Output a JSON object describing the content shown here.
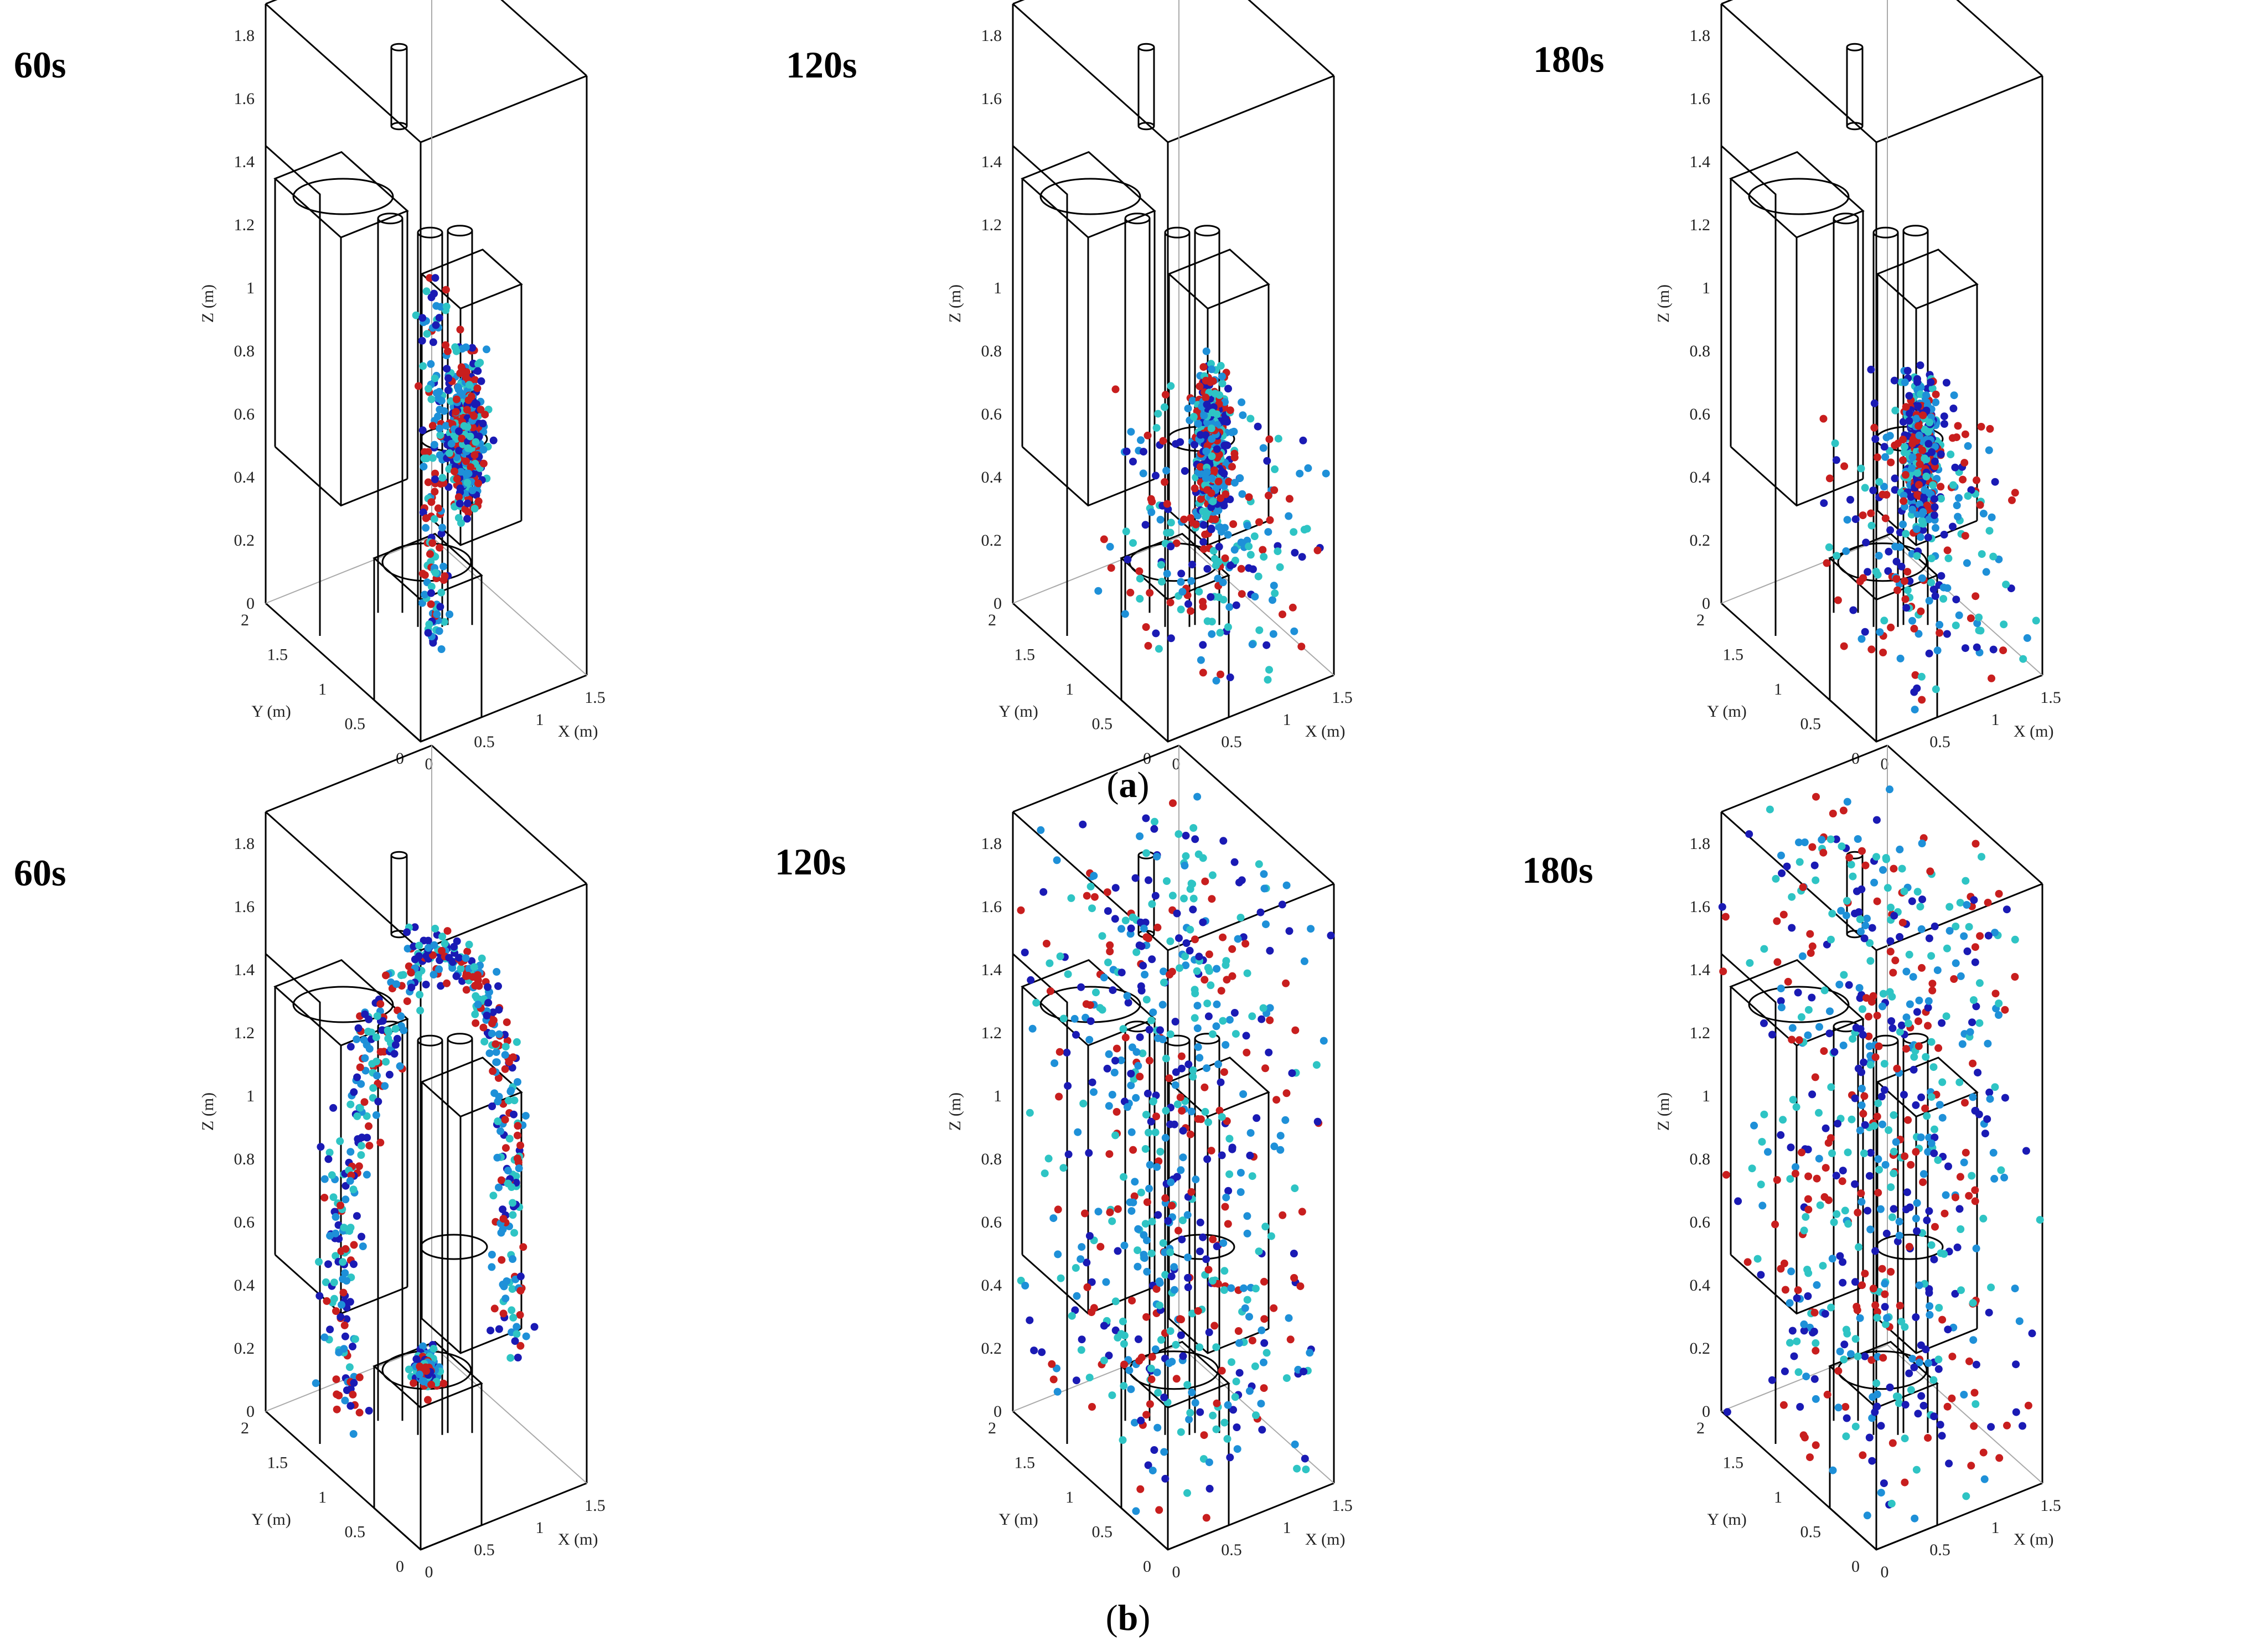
{
  "figure": {
    "rows": [
      {
        "letter": "a",
        "paren_open": "(",
        "paren_close": ")"
      },
      {
        "letter": "b",
        "paren_open": "(",
        "paren_close": ")"
      }
    ]
  },
  "chart_data": [
    {
      "type": "scatter",
      "row": "a",
      "time_label": "60s",
      "distribution": "cluster",
      "particle_count": 620,
      "axes": {
        "xlabel": "X (m)",
        "ylabel": "Y (m)",
        "zlabel": "Z (m)",
        "xticks": [
          "0",
          "0.5",
          "1",
          "1.5"
        ],
        "yticks": [
          "0",
          "0.5",
          "1",
          "1.5",
          "2"
        ],
        "zticks": [
          "0",
          "0.2",
          "0.4",
          "0.6",
          "0.8",
          "1",
          "1.2",
          "1.4",
          "1.6",
          "1.8"
        ],
        "xlim": [
          0,
          1.5
        ],
        "ylim": [
          0,
          2
        ],
        "zlim": [
          0,
          1.9
        ]
      },
      "colors": [
        "#1a1ab4",
        "#1e90d8",
        "#2ec4c4",
        "#c81e1e"
      ]
    },
    {
      "type": "scatter",
      "row": "a",
      "time_label": "120s",
      "distribution": "cluster-spread",
      "particle_count": 620,
      "axes": {
        "xlabel": "X (m)",
        "ylabel": "Y (m)",
        "zlabel": "Z (m)",
        "xticks": [
          "0",
          "0.5",
          "1",
          "1.5"
        ],
        "yticks": [
          "0",
          "0.5",
          "1",
          "1.5",
          "2"
        ],
        "zticks": [
          "0",
          "0.2",
          "0.4",
          "0.6",
          "0.8",
          "1",
          "1.2",
          "1.4",
          "1.6",
          "1.8"
        ],
        "xlim": [
          0,
          1.5
        ],
        "ylim": [
          0,
          2
        ],
        "zlim": [
          0,
          1.9
        ]
      },
      "colors": [
        "#1a1ab4",
        "#1e90d8",
        "#2ec4c4",
        "#c81e1e"
      ]
    },
    {
      "type": "scatter",
      "row": "a",
      "time_label": "180s",
      "distribution": "cluster-spread",
      "particle_count": 620,
      "axes": {
        "xlabel": "X (m)",
        "ylabel": "Y (m)",
        "zlabel": "Z (m)",
        "xticks": [
          "0",
          "0.5",
          "1",
          "1.5"
        ],
        "yticks": [
          "0",
          "0.5",
          "1",
          "1.5",
          "2"
        ],
        "zticks": [
          "0",
          "0.2",
          "0.4",
          "0.6",
          "0.8",
          "1",
          "1.2",
          "1.4",
          "1.6",
          "1.8"
        ],
        "xlim": [
          0,
          1.5
        ],
        "ylim": [
          0,
          2
        ],
        "zlim": [
          0,
          1.9
        ]
      },
      "colors": [
        "#1a1ab4",
        "#1e90d8",
        "#2ec4c4",
        "#c81e1e"
      ]
    },
    {
      "type": "scatter",
      "row": "b",
      "time_label": "60s",
      "distribution": "plume",
      "particle_count": 620,
      "axes": {
        "xlabel": "X (m)",
        "ylabel": "Y (m)",
        "zlabel": "Z (m)",
        "xticks": [
          "0",
          "0.5",
          "1",
          "1.5"
        ],
        "yticks": [
          "0",
          "0.5",
          "1",
          "1.5",
          "2"
        ],
        "zticks": [
          "0",
          "0.2",
          "0.4",
          "0.6",
          "0.8",
          "1",
          "1.2",
          "1.4",
          "1.6",
          "1.8"
        ],
        "xlim": [
          0,
          1.5
        ],
        "ylim": [
          0,
          2
        ],
        "zlim": [
          0,
          1.9
        ]
      },
      "colors": [
        "#1a1ab4",
        "#1e90d8",
        "#2ec4c4",
        "#c81e1e"
      ]
    },
    {
      "type": "scatter",
      "row": "b",
      "time_label": "120s",
      "distribution": "dispersed",
      "particle_count": 620,
      "axes": {
        "xlabel": "X (m)",
        "ylabel": "Y (m)",
        "zlabel": "Z (m)",
        "xticks": [
          "0",
          "0.5",
          "1",
          "1.5"
        ],
        "yticks": [
          "0",
          "0.5",
          "1",
          "1.5",
          "2"
        ],
        "zticks": [
          "0",
          "0.2",
          "0.4",
          "0.6",
          "0.8",
          "1",
          "1.2",
          "1.4",
          "1.6",
          "1.8"
        ],
        "xlim": [
          0,
          1.5
        ],
        "ylim": [
          0,
          2
        ],
        "zlim": [
          0,
          1.9
        ]
      },
      "colors": [
        "#1a1ab4",
        "#1e90d8",
        "#2ec4c4",
        "#c81e1e"
      ]
    },
    {
      "type": "scatter",
      "row": "b",
      "time_label": "180s",
      "distribution": "dispersed",
      "particle_count": 620,
      "axes": {
        "xlabel": "X (m)",
        "ylabel": "Y (m)",
        "zlabel": "Z (m)",
        "xticks": [
          "0",
          "0.5",
          "1",
          "1.5"
        ],
        "yticks": [
          "0",
          "0.5",
          "1",
          "1.5",
          "2"
        ],
        "zticks": [
          "0",
          "0.2",
          "0.4",
          "0.6",
          "0.8",
          "1",
          "1.2",
          "1.4",
          "1.6",
          "1.8"
        ],
        "xlim": [
          0,
          1.5
        ],
        "ylim": [
          0,
          2
        ],
        "zlim": [
          0,
          1.9
        ]
      },
      "colors": [
        "#1a1ab4",
        "#1e90d8",
        "#2ec4c4",
        "#c81e1e"
      ]
    }
  ]
}
